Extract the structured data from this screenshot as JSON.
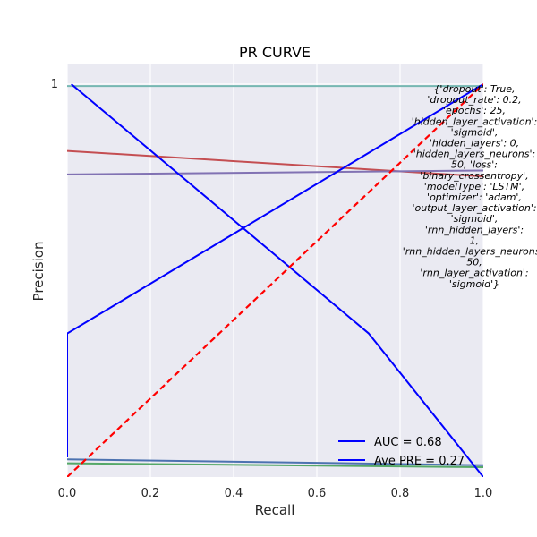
{
  "chart_data": {
    "type": "line",
    "title": "PR CURVE",
    "xlabel": "Recall",
    "ylabel": "Precision",
    "xlim": [
      0,
      1
    ],
    "ylim": [
      0,
      1.05
    ],
    "grid": true,
    "x_ticks": [
      {
        "value": 0.0,
        "label": "0.0"
      },
      {
        "value": 0.2,
        "label": "0.2"
      },
      {
        "value": 0.4,
        "label": "0.4"
      },
      {
        "value": 0.6,
        "label": "0.6"
      },
      {
        "value": 0.8,
        "label": "0.8"
      },
      {
        "value": 1.0,
        "label": "1.0"
      }
    ],
    "y_ticks": [
      {
        "value": 1,
        "label": "1"
      }
    ],
    "series": [
      {
        "color": "#76b7b2",
        "dash": false,
        "x": [
          0,
          1
        ],
        "y": [
          0.995,
          0.995
        ]
      },
      {
        "color": "#c44e52",
        "dash": false,
        "x": [
          0,
          1
        ],
        "y": [
          0.83,
          0.765
        ]
      },
      {
        "color": "#8172b3",
        "dash": false,
        "x": [
          0,
          1
        ],
        "y": [
          0.77,
          0.78
        ]
      },
      {
        "color": "#4c72b0",
        "dash": false,
        "x": [
          0,
          1
        ],
        "y": [
          0.045,
          0.03
        ]
      },
      {
        "color": "#55a868",
        "dash": false,
        "x": [
          0,
          1
        ],
        "y": [
          0.035,
          0.025
        ]
      },
      {
        "name": "AUC = 0.68",
        "color": "#0000ff",
        "dash": false,
        "x": [
          0.01,
          0.725,
          1.0
        ],
        "y": [
          1.0,
          0.365,
          0.0
        ]
      },
      {
        "name": "Ave PRE = 0.27",
        "color": "#0000ff",
        "dash": false,
        "x": [
          0.0,
          0.0,
          0.0,
          1.0
        ],
        "y": [
          0.05,
          0.12,
          0.365,
          1.0
        ]
      },
      {
        "color": "#ff0000",
        "dash": true,
        "x": [
          0,
          1
        ],
        "y": [
          0,
          1
        ]
      }
    ],
    "legend": {
      "placement": "lower-right",
      "entries": [
        {
          "label": "AUC = 0.68",
          "color": "#0000ff"
        },
        {
          "label": "Ave PRE = 0.27",
          "color": "#0000ff"
        }
      ]
    },
    "annotation": {
      "lines": [
        "{'dropout': True,",
        "'dropout_rate': 0.2,",
        "'epochs': 25,",
        "'hidden_layer_activation':",
        "'sigmoid',",
        "'hidden_layers': 0,",
        "'hidden_layers_neurons':",
        "50, 'loss':",
        "'binary_crossentropy',",
        "'modelType': 'LSTM',",
        "'optimizer': 'adam',",
        "'output_layer_activation':",
        "'sigmoid',",
        "'rnn_hidden_layers':",
        "1,",
        "'rnn_hidden_layers_neurons':",
        "50,",
        "'rnn_layer_activation':",
        "'sigmoid'}"
      ]
    }
  }
}
